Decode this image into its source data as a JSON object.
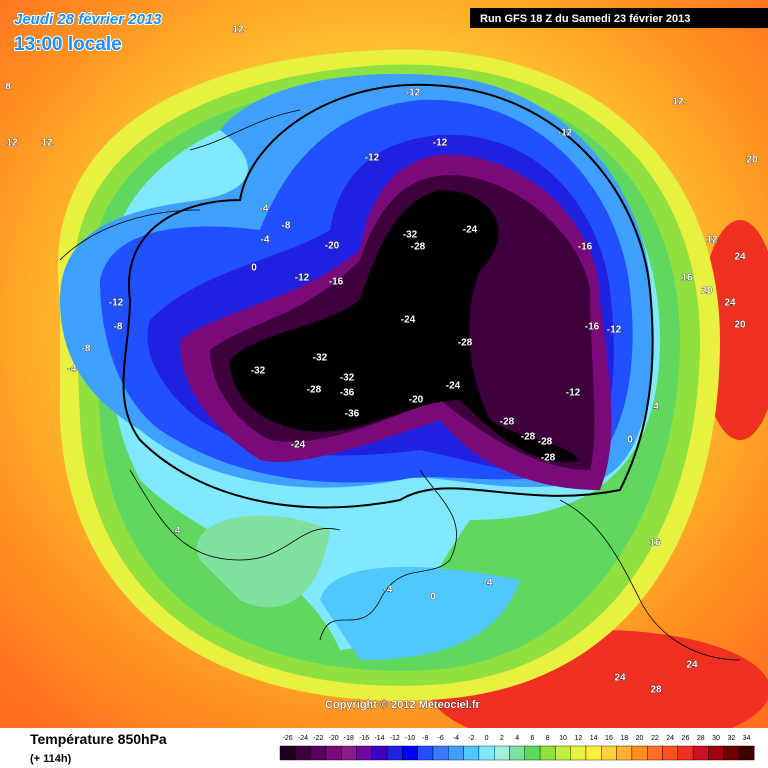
{
  "header": {
    "date": "Jeudi 28 février 2013",
    "time": "13:00 locale",
    "run": "Run GFS 18 Z du Samedi 23 février 2013"
  },
  "copyright": "Copyright © 2012 Meteociel.fr",
  "footer": {
    "title": "Température 850hPa",
    "lead": "(+ 114h)"
  },
  "colorbar": {
    "ticks": [
      -26,
      -24,
      -22,
      -20,
      -18,
      -16,
      -14,
      -12,
      -10,
      -8,
      -6,
      -4,
      -2,
      0,
      2,
      4,
      6,
      8,
      10,
      12,
      14,
      16,
      18,
      20,
      22,
      24,
      26,
      28,
      30,
      32,
      34
    ],
    "colors": [
      "#1a001a",
      "#3d003d",
      "#5a005a",
      "#7a0a7a",
      "#8c1a8c",
      "#6a0aa0",
      "#4000c0",
      "#2020e0",
      "#0000ff",
      "#2050ff",
      "#3a78ff",
      "#40a0ff",
      "#50c8ff",
      "#80e8ff",
      "#a0f0e0",
      "#80e0a0",
      "#60d860",
      "#90e040",
      "#c0f040",
      "#e8f040",
      "#fff040",
      "#ffd040",
      "#ffb030",
      "#ff9020",
      "#ff7020",
      "#ff5020",
      "#f03020",
      "#d01020",
      "#a00010",
      "#700000",
      "#400000"
    ]
  },
  "map": {
    "labels": [
      "-12",
      "-12",
      "-12",
      "-12",
      "-16",
      "-24",
      "-32",
      "-28",
      "-20",
      "-16",
      "-24",
      "-28",
      "-32",
      "-32",
      "-28",
      "-32",
      "-36",
      "-36",
      "-20",
      "-24",
      "-24",
      "-28",
      "-28",
      "-28",
      "-28",
      "-12",
      "-16",
      "-12",
      "-4",
      "-8",
      "-12",
      "-12",
      "-8",
      "-8",
      "-4",
      "-4",
      "0",
      "0",
      "4",
      "-4",
      "-4",
      "-4",
      "0",
      "12",
      "12",
      "12",
      "16",
      "20",
      "24",
      "24",
      "24",
      "20",
      "16",
      "8",
      "12",
      "12",
      "20",
      "24",
      "28"
    ]
  }
}
